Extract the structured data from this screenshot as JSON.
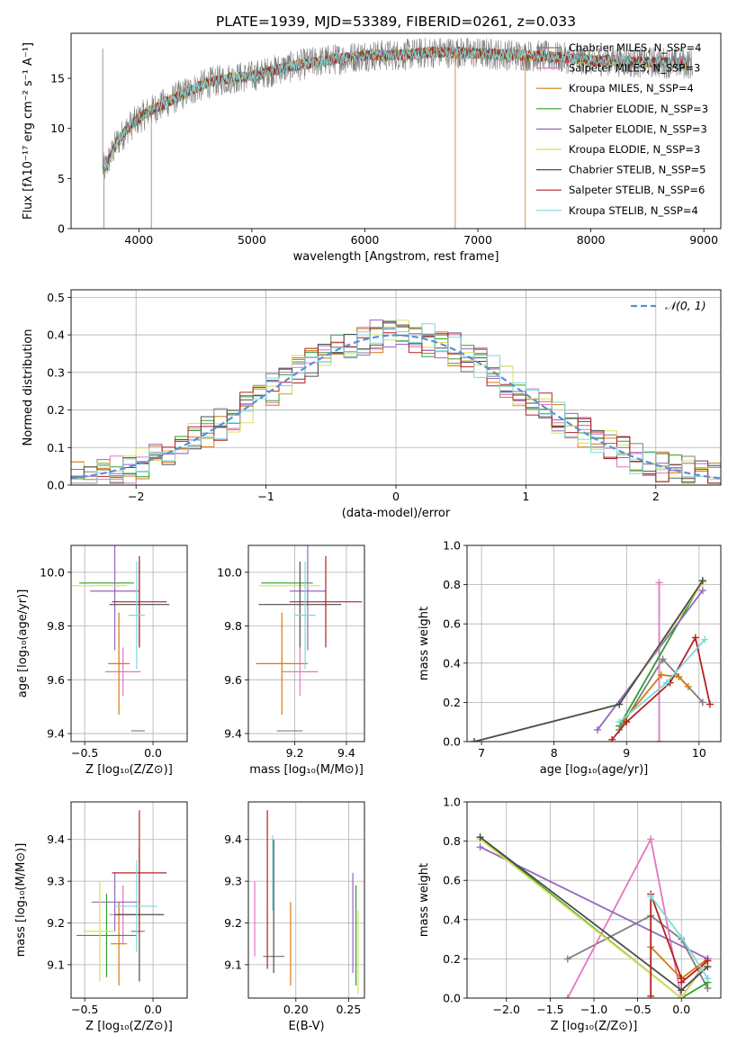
{
  "figure": {
    "title": "PLATE=1939, MJD=53389, FIBERID=0261, z=0.033"
  },
  "legend_colors": [
    "#7f7f7f",
    "#e377c2",
    "#d47a10",
    "#2ca02c",
    "#9467bd",
    "#d8e05a",
    "#4d4d4d",
    "#b22222",
    "#7fd8dc"
  ],
  "chart_data": [
    {
      "id": "spectrum",
      "type": "line",
      "xlabel": "wavelength [Angstrom, rest frame]",
      "ylabel": "Flux [fλ10⁻¹⁷ erg cm⁻² s⁻¹ A⁻¹]",
      "xlim": [
        3400,
        9150
      ],
      "ylim": [
        0,
        19.5
      ],
      "xticks": [
        4000,
        5000,
        6000,
        7000,
        8000,
        9000
      ],
      "yticks": [
        0,
        5,
        10,
        15
      ],
      "grid": false,
      "legend_position": "top-right",
      "series": [
        {
          "name": "Chabrier MILES, N_SSP=4"
        },
        {
          "name": "Salpeter MILES, N_SSP=3"
        },
        {
          "name": "Kroupa MILES, N_SSP=4"
        },
        {
          "name": "Chabrier ELODIE, N_SSP=3"
        },
        {
          "name": "Salpeter ELODIE, N_SSP=3"
        },
        {
          "name": "Kroupa ELODIE, N_SSP=3"
        },
        {
          "name": "Chabrier STELIB, N_SSP=5"
        },
        {
          "name": "Salpeter STELIB, N_SSP=6"
        },
        {
          "name": "Kroupa STELIB, N_SSP=4"
        }
      ],
      "model_curve": {
        "wavelength": [
          3700,
          3800,
          3900,
          4000,
          4100,
          4200,
          4400,
          4600,
          4800,
          5000,
          5200,
          5400,
          5600,
          5800,
          6000,
          6200,
          6400,
          6600,
          6800,
          7000,
          7200,
          7400,
          7600,
          7800,
          8000,
          8200,
          8400,
          8600,
          8800
        ],
        "flux": [
          6.0,
          8.5,
          10.0,
          11.0,
          11.8,
          12.3,
          13.5,
          14.5,
          15.0,
          15.2,
          15.8,
          16.3,
          16.7,
          17.0,
          17.3,
          17.3,
          17.4,
          17.6,
          17.6,
          17.5,
          17.4,
          17.3,
          17.2,
          17.0,
          16.8,
          16.8,
          16.6,
          16.6,
          16.5
        ]
      }
    },
    {
      "id": "residuals",
      "type": "bar",
      "xlabel": "(data-model)/error",
      "ylabel": "Normed distribution",
      "xlim": [
        -2.5,
        2.5
      ],
      "ylim": [
        0,
        0.52
      ],
      "xticks": [
        -2,
        -1,
        0,
        1,
        2
      ],
      "yticks": [
        0.0,
        0.1,
        0.2,
        0.3,
        0.4,
        0.5
      ],
      "grid": true,
      "legend_position": "top-right",
      "reference": {
        "name": "𝒩(0, 1)",
        "mean": 0,
        "sigma": 1
      },
      "bin_width": 0.1
    },
    {
      "id": "age-vs-Z",
      "type": "scatter",
      "xlabel": "Z [log₁₀(Z/Z⊙)]",
      "ylabel": "age  [log₁₀(age/yr)]",
      "xlim": [
        -0.6,
        0.25
      ],
      "ylim": [
        9.37,
        10.1
      ],
      "xticks": [
        -0.5,
        0.0
      ],
      "yticks": [
        9.4,
        9.6,
        9.8,
        10.0
      ],
      "grid": true,
      "points": [
        {
          "x": -0.11,
          "y": 9.41,
          "xerr": 0.05,
          "yerr": 0.0
        },
        {
          "x": -0.22,
          "y": 9.63,
          "xerr": 0.13,
          "yerr": 0.09
        },
        {
          "x": -0.25,
          "y": 9.66,
          "xerr": 0.08,
          "yerr": 0.19
        },
        {
          "x": -0.34,
          "y": 9.96,
          "xerr": 0.2,
          "yerr": 0.0
        },
        {
          "x": -0.28,
          "y": 9.93,
          "xerr": 0.18,
          "yerr": 0.22
        },
        {
          "x": -0.39,
          "y": 9.95,
          "xerr": 0.2,
          "yerr": 0.0
        },
        {
          "x": -0.1,
          "y": 9.88,
          "xerr": 0.22,
          "yerr": 0.16
        },
        {
          "x": -0.1,
          "y": 9.89,
          "xerr": 0.2,
          "yerr": 0.17
        },
        {
          "x": -0.12,
          "y": 9.84,
          "xerr": 0.06,
          "yerr": 0.2
        }
      ]
    },
    {
      "id": "age-vs-mass",
      "type": "scatter",
      "xlabel": "mass [log₁₀(M/M⊙)]",
      "ylabel": "",
      "xlim": [
        9.02,
        9.47
      ],
      "ylim": [
        9.37,
        10.1
      ],
      "xticks": [
        9.2,
        9.4
      ],
      "yticks": [
        9.4,
        9.6,
        9.8,
        10.0
      ],
      "grid": true,
      "points": [
        {
          "x": 9.18,
          "y": 9.41,
          "xerr": 0.05,
          "yerr": 0.0
        },
        {
          "x": 9.22,
          "y": 9.63,
          "xerr": 0.07,
          "yerr": 0.09
        },
        {
          "x": 9.15,
          "y": 9.66,
          "xerr": 0.1,
          "yerr": 0.19
        },
        {
          "x": 9.17,
          "y": 9.96,
          "xerr": 0.1,
          "yerr": 0.0
        },
        {
          "x": 9.25,
          "y": 9.93,
          "xerr": 0.07,
          "yerr": 0.22
        },
        {
          "x": 9.18,
          "y": 9.95,
          "xerr": 0.12,
          "yerr": 0.0
        },
        {
          "x": 9.22,
          "y": 9.88,
          "xerr": 0.16,
          "yerr": 0.16
        },
        {
          "x": 9.32,
          "y": 9.89,
          "xerr": 0.14,
          "yerr": 0.17
        },
        {
          "x": 9.24,
          "y": 9.84,
          "xerr": 0.04,
          "yerr": 0.2
        }
      ]
    },
    {
      "id": "massweight-vs-age",
      "type": "line",
      "xlabel": "age  [log₁₀(age/yr)]",
      "ylabel": "mass weight",
      "xlim": [
        6.8,
        10.3
      ],
      "ylim": [
        0,
        1
      ],
      "xticks": [
        7,
        8,
        9,
        10
      ],
      "yticks": [
        0.0,
        0.2,
        0.4,
        0.6,
        0.8,
        1.0
      ],
      "grid": true,
      "series": [
        {
          "x": [
            8.9,
            9.5,
            10.05
          ],
          "y": [
            0.06,
            0.42,
            0.2
          ]
        },
        {
          "x": [
            9.45,
            9.45
          ],
          "y": [
            0.0,
            0.81
          ]
        },
        {
          "x": [
            8.9,
            9.48,
            9.72,
            9.85
          ],
          "y": [
            0.08,
            0.34,
            0.33,
            0.28
          ]
        },
        {
          "x": [
            8.9,
            10.05
          ],
          "y": [
            0.08,
            0.82
          ]
        },
        {
          "x": [
            8.6,
            10.05
          ],
          "y": [
            0.06,
            0.77
          ]
        },
        {
          "x": [
            6.9,
            8.9,
            10.05
          ],
          "y": [
            0.0,
            0.19,
            0.81
          ]
        },
        {
          "x": [
            6.9,
            8.9,
            10.05
          ],
          "y": [
            0.0,
            0.19,
            0.82
          ]
        },
        {
          "x": [
            8.8,
            9.0,
            9.6,
            9.95,
            10.15
          ],
          "y": [
            0.01,
            0.1,
            0.3,
            0.53,
            0.19
          ]
        },
        {
          "x": [
            8.9,
            9.55,
            10.08
          ],
          "y": [
            0.1,
            0.3,
            0.52
          ]
        }
      ]
    },
    {
      "id": "mass-vs-Z",
      "type": "scatter",
      "xlabel": "Z [log₁₀(Z/Z⊙)]",
      "ylabel": "mass [log₁₀(M/M⊙)]",
      "xlim": [
        -0.6,
        0.25
      ],
      "ylim": [
        9.02,
        9.49
      ],
      "xticks": [
        -0.5,
        0.0
      ],
      "yticks": [
        9.1,
        9.2,
        9.3,
        9.4
      ],
      "grid": true,
      "points": [
        {
          "x": -0.11,
          "y": 9.18,
          "xerr": 0.05,
          "yerr": 0.0
        },
        {
          "x": -0.22,
          "y": 9.22,
          "xerr": 0.1,
          "yerr": 0.07
        },
        {
          "x": -0.25,
          "y": 9.15,
          "xerr": 0.06,
          "yerr": 0.1
        },
        {
          "x": -0.34,
          "y": 9.17,
          "xerr": 0.22,
          "yerr": 0.1
        },
        {
          "x": -0.28,
          "y": 9.25,
          "xerr": 0.17,
          "yerr": 0.07
        },
        {
          "x": -0.39,
          "y": 9.18,
          "xerr": 0.12,
          "yerr": 0.12
        },
        {
          "x": -0.1,
          "y": 9.22,
          "xerr": 0.18,
          "yerr": 0.16
        },
        {
          "x": -0.1,
          "y": 9.32,
          "xerr": 0.2,
          "yerr": 0.15
        },
        {
          "x": -0.12,
          "y": 9.24,
          "xerr": 0.15,
          "yerr": 0.11
        }
      ]
    },
    {
      "id": "mass-vs-ebv",
      "type": "scatter",
      "xlabel": "E(B-V)",
      "ylabel": "",
      "xlim": [
        0.155,
        0.265
      ],
      "ylim": [
        9.02,
        9.49
      ],
      "xticks": [
        0.2,
        0.25
      ],
      "yticks": [
        9.1,
        9.2,
        9.3,
        9.4
      ],
      "grid": true,
      "points": [
        {
          "x": 0.179,
          "y": 9.12,
          "yerr": 0.0
        },
        {
          "x": 0.161,
          "y": 9.21,
          "yerr": 0.09
        },
        {
          "x": 0.195,
          "y": 9.15,
          "yerr": 0.1
        },
        {
          "x": 0.257,
          "y": 9.17,
          "yerr": 0.12
        },
        {
          "x": 0.254,
          "y": 9.2,
          "yerr": 0.12
        },
        {
          "x": 0.259,
          "y": 9.13,
          "yerr": 0.1
        },
        {
          "x": 0.179,
          "y": 9.24,
          "yerr": 0.16
        },
        {
          "x": 0.173,
          "y": 9.28,
          "yerr": 0.19
        },
        {
          "x": 0.178,
          "y": 9.32,
          "yerr": 0.09
        }
      ]
    },
    {
      "id": "massweight-vs-Z",
      "type": "line",
      "xlabel": "Z [log₁₀(Z/Z⊙)]",
      "ylabel": "mass weight",
      "xlim": [
        -2.45,
        0.45
      ],
      "ylim": [
        0,
        1
      ],
      "xticks": [
        -2.0,
        -1.5,
        -1.0,
        -0.5,
        0.0
      ],
      "yticks": [
        0.0,
        0.2,
        0.4,
        0.6,
        0.8,
        1.0
      ],
      "grid": true,
      "series": [
        {
          "x": [
            -1.3,
            -0.35,
            0.0,
            0.3
          ],
          "y": [
            0.2,
            0.42,
            0.3,
            0.05
          ]
        },
        {
          "x": [
            -1.3,
            -0.35,
            0.0,
            0.3
          ],
          "y": [
            0.0,
            0.81,
            0.0,
            0.2
          ]
        },
        {
          "x": [
            -0.35,
            0.0,
            0.3
          ],
          "y": [
            0.26,
            0.1,
            0.2
          ]
        },
        {
          "x": [
            -2.3,
            0.0,
            0.3
          ],
          "y": [
            0.82,
            0.0,
            0.08
          ]
        },
        {
          "x": [
            -2.3,
            0.3
          ],
          "y": [
            0.77,
            0.2
          ]
        },
        {
          "x": [
            -2.3,
            0.0,
            0.3
          ],
          "y": [
            0.81,
            0.0,
            0.19
          ]
        },
        {
          "x": [
            -2.3,
            0.0,
            0.3
          ],
          "y": [
            0.82,
            0.04,
            0.16
          ]
        },
        {
          "x": [
            -0.35,
            -0.35,
            0.0,
            0.0,
            0.3
          ],
          "y": [
            0.01,
            0.53,
            0.1,
            0.08,
            0.19
          ]
        },
        {
          "x": [
            -0.35,
            0.0,
            0.3
          ],
          "y": [
            0.52,
            0.31,
            0.1
          ]
        }
      ]
    }
  ]
}
